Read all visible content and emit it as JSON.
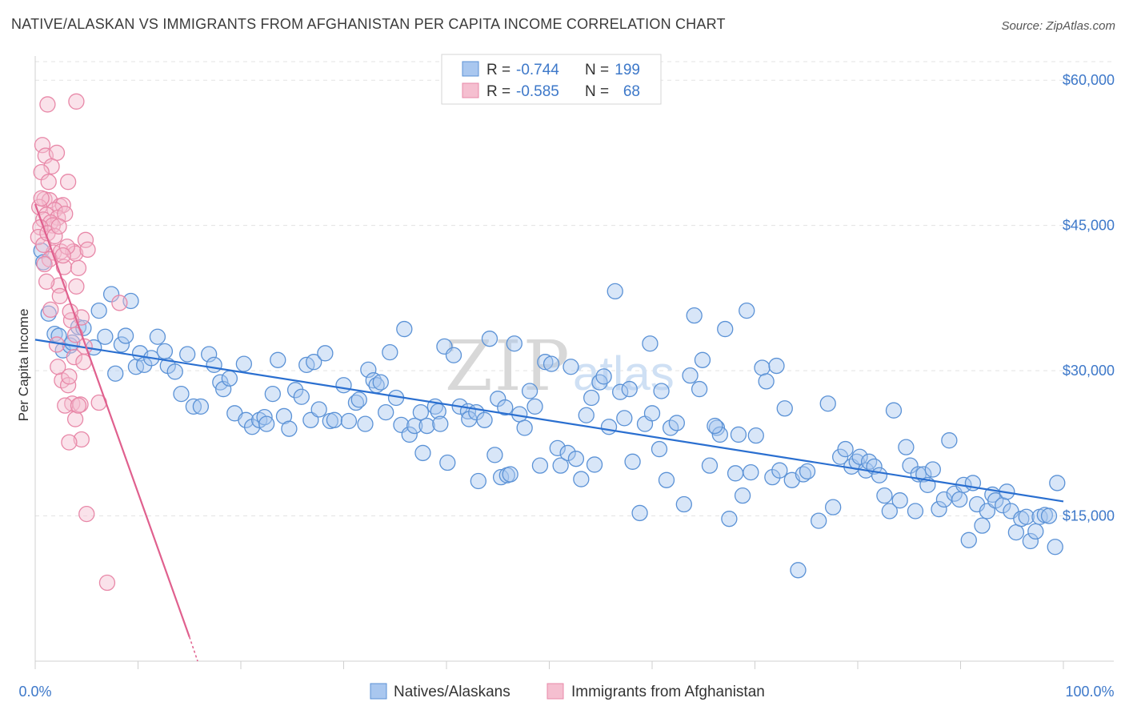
{
  "title": "NATIVE/ALASKAN VS IMMIGRANTS FROM AFGHANISTAN PER CAPITA INCOME CORRELATION CHART",
  "source": "Source: ZipAtlas.com",
  "watermark": {
    "zip": "ZIP",
    "atlas": "atlas"
  },
  "colors": {
    "blue_stroke": "#5b92d6",
    "blue_fill": "#a9c7ef",
    "blue_line": "#2a6fd0",
    "pink_stroke": "#e888a8",
    "pink_fill": "#f5bfd0",
    "pink_line": "#e0608e",
    "tick_text": "#3d78c9",
    "grid": "#e3e3e3"
  },
  "legend": {
    "r_label": "R =",
    "n_label": "N =",
    "rows": [
      {
        "r": "-0.744",
        "n": "199"
      },
      {
        "r": "-0.585",
        "n": "68"
      }
    ]
  },
  "chart_data": {
    "type": "scatter",
    "title": "NATIVE/ALASKAN VS IMMIGRANTS FROM AFGHANISTAN PER CAPITA INCOME CORRELATION CHART",
    "xlabel": "",
    "ylabel": "Per Capita Income",
    "xlim": [
      0,
      100
    ],
    "ylim": [
      0,
      62000
    ],
    "x_tick_labels": [
      "0.0%",
      "100.0%"
    ],
    "y_ticks": [
      15000,
      30000,
      45000,
      60000
    ],
    "y_tick_labels": [
      "$15,000",
      "$30,000",
      "$45,000",
      "$60,000"
    ],
    "grid": true,
    "legend_position": "top-center",
    "series": [
      {
        "name": "Natives/Alaskans",
        "r": -0.744,
        "n": 199,
        "trend": {
          "x": [
            0,
            100
          ],
          "y": [
            33200,
            16500
          ]
        },
        "points": [
          [
            0.6,
            42400
          ],
          [
            0.8,
            41200
          ],
          [
            1.3,
            35900
          ],
          [
            1.9,
            33800
          ],
          [
            2.3,
            33600
          ],
          [
            2.7,
            32100
          ],
          [
            3.4,
            32600
          ],
          [
            3.6,
            32900
          ],
          [
            4.2,
            34500
          ],
          [
            4.7,
            34400
          ],
          [
            5.7,
            32400
          ],
          [
            6.2,
            36200
          ],
          [
            6.8,
            33500
          ],
          [
            7.4,
            37900
          ],
          [
            7.8,
            29700
          ],
          [
            8.4,
            32700
          ],
          [
            8.8,
            33600
          ],
          [
            9.3,
            37200
          ],
          [
            9.8,
            30400
          ],
          [
            10.2,
            31800
          ],
          [
            10.6,
            30600
          ],
          [
            11.3,
            31300
          ],
          [
            11.9,
            33500
          ],
          [
            12.6,
            32000
          ],
          [
            12.9,
            30500
          ],
          [
            13.6,
            29900
          ],
          [
            14.2,
            27600
          ],
          [
            14.8,
            31700
          ],
          [
            15.4,
            26300
          ],
          [
            16.1,
            26300
          ],
          [
            16.9,
            31700
          ],
          [
            17.4,
            30600
          ],
          [
            18,
            28800
          ],
          [
            18.3,
            28100
          ],
          [
            18.9,
            29200
          ],
          [
            19.4,
            25600
          ],
          [
            20.3,
            30700
          ],
          [
            20.5,
            24900
          ],
          [
            21.1,
            24200
          ],
          [
            21.8,
            24900
          ],
          [
            22.3,
            25200
          ],
          [
            22.5,
            24500
          ],
          [
            23.1,
            27600
          ],
          [
            23.6,
            31100
          ],
          [
            24.2,
            25300
          ],
          [
            24.7,
            24000
          ],
          [
            25.3,
            28000
          ],
          [
            25.9,
            27300
          ],
          [
            26.4,
            30600
          ],
          [
            26.8,
            24900
          ],
          [
            27.1,
            30900
          ],
          [
            27.6,
            26000
          ],
          [
            28.2,
            31800
          ],
          [
            28.7,
            24800
          ],
          [
            29.1,
            24900
          ],
          [
            30,
            28500
          ],
          [
            30.5,
            24800
          ],
          [
            31.2,
            26700
          ],
          [
            31.5,
            27000
          ],
          [
            32.1,
            24500
          ],
          [
            32.4,
            30100
          ],
          [
            32.9,
            29000
          ],
          [
            33.2,
            28500
          ],
          [
            33.6,
            28800
          ],
          [
            34.1,
            25700
          ],
          [
            34.5,
            31900
          ],
          [
            35.1,
            27200
          ],
          [
            35.6,
            24400
          ],
          [
            35.9,
            34300
          ],
          [
            36.4,
            23400
          ],
          [
            36.9,
            24300
          ],
          [
            37.5,
            25700
          ],
          [
            37.7,
            21500
          ],
          [
            38.1,
            24300
          ],
          [
            38.9,
            26300
          ],
          [
            39.2,
            25800
          ],
          [
            39.4,
            24500
          ],
          [
            39.8,
            32500
          ],
          [
            40.1,
            20500
          ],
          [
            40.7,
            31600
          ],
          [
            41.3,
            26300
          ],
          [
            42.1,
            25800
          ],
          [
            42.2,
            25000
          ],
          [
            42.9,
            25700
          ],
          [
            43.1,
            18600
          ],
          [
            43.7,
            24900
          ],
          [
            44.2,
            33300
          ],
          [
            44.7,
            21300
          ],
          [
            45,
            27100
          ],
          [
            45.3,
            19000
          ],
          [
            45.9,
            19200
          ],
          [
            46.2,
            19300
          ],
          [
            46.6,
            32800
          ],
          [
            47.1,
            25500
          ],
          [
            47.6,
            24100
          ],
          [
            48.1,
            27900
          ],
          [
            48.6,
            26300
          ],
          [
            49.1,
            20200
          ],
          [
            49.6,
            30900
          ],
          [
            50.2,
            30700
          ],
          [
            50.8,
            22000
          ],
          [
            51.1,
            20200
          ],
          [
            51.8,
            21500
          ],
          [
            52.1,
            30400
          ],
          [
            52.6,
            20900
          ],
          [
            53.1,
            18800
          ],
          [
            53.6,
            25400
          ],
          [
            54.1,
            27200
          ],
          [
            54.4,
            20300
          ],
          [
            54.9,
            28800
          ],
          [
            55.3,
            29400
          ],
          [
            55.8,
            24200
          ],
          [
            56.4,
            38200
          ],
          [
            56.9,
            27800
          ],
          [
            57.3,
            25100
          ],
          [
            57.8,
            28100
          ],
          [
            58.1,
            20600
          ],
          [
            58.8,
            15300
          ],
          [
            59.3,
            24500
          ],
          [
            59.8,
            32800
          ],
          [
            60,
            25600
          ],
          [
            60.7,
            21900
          ],
          [
            61.4,
            18700
          ],
          [
            61.8,
            24100
          ],
          [
            62.4,
            24600
          ],
          [
            63.1,
            16200
          ],
          [
            63.7,
            29500
          ],
          [
            64.1,
            35700
          ],
          [
            64.6,
            28100
          ],
          [
            64.9,
            31100
          ],
          [
            65.6,
            20200
          ],
          [
            66.3,
            24100
          ],
          [
            66.6,
            23400
          ],
          [
            67.1,
            34300
          ],
          [
            67.5,
            14700
          ],
          [
            68.1,
            19400
          ],
          [
            68.4,
            23400
          ],
          [
            68.8,
            17100
          ],
          [
            69.2,
            36200
          ],
          [
            69.6,
            19500
          ],
          [
            70.1,
            23300
          ],
          [
            70.7,
            30300
          ],
          [
            71.1,
            28900
          ],
          [
            71.7,
            19000
          ],
          [
            72.1,
            30500
          ],
          [
            72.4,
            19700
          ],
          [
            72.9,
            26100
          ],
          [
            73.6,
            18700
          ],
          [
            74.2,
            9400
          ],
          [
            74.7,
            19300
          ],
          [
            75.1,
            19600
          ],
          [
            76.2,
            14500
          ],
          [
            77.1,
            26600
          ],
          [
            77.6,
            15900
          ],
          [
            78.3,
            21100
          ],
          [
            78.8,
            21900
          ],
          [
            79.4,
            20100
          ],
          [
            79.9,
            20600
          ],
          [
            80.2,
            21100
          ],
          [
            80.8,
            19700
          ],
          [
            81.1,
            20600
          ],
          [
            81.6,
            20100
          ],
          [
            82.1,
            19200
          ],
          [
            82.6,
            17100
          ],
          [
            83.1,
            15500
          ],
          [
            83.5,
            25900
          ],
          [
            84.1,
            16600
          ],
          [
            84.7,
            22100
          ],
          [
            85.1,
            20200
          ],
          [
            85.6,
            15500
          ],
          [
            85.9,
            19300
          ],
          [
            86.4,
            19300
          ],
          [
            86.8,
            18200
          ],
          [
            87.3,
            19800
          ],
          [
            87.9,
            15700
          ],
          [
            88.4,
            16700
          ],
          [
            88.9,
            22800
          ],
          [
            89.4,
            17300
          ],
          [
            89.9,
            16700
          ],
          [
            90.3,
            18200
          ],
          [
            90.8,
            12500
          ],
          [
            91.2,
            18400
          ],
          [
            91.6,
            16200
          ],
          [
            92.1,
            14000
          ],
          [
            92.6,
            15500
          ],
          [
            93.1,
            17200
          ],
          [
            93.4,
            16600
          ],
          [
            94.1,
            16100
          ],
          [
            94.5,
            17500
          ],
          [
            94.9,
            15500
          ],
          [
            95.4,
            13300
          ],
          [
            95.9,
            14700
          ],
          [
            96.4,
            14900
          ],
          [
            96.8,
            12400
          ],
          [
            97.3,
            13400
          ],
          [
            97.7,
            14900
          ],
          [
            98.2,
            15100
          ],
          [
            98.6,
            15000
          ],
          [
            99.2,
            11800
          ],
          [
            99.4,
            18400
          ],
          [
            66.1,
            24300
          ],
          [
            60.9,
            27900
          ],
          [
            45.7,
            26200
          ]
        ]
      },
      {
        "name": "Immigrants from Afghanistan",
        "r": -0.585,
        "n": 68,
        "trend": {
          "x": [
            0,
            15
          ],
          "y": [
            47200,
            2500
          ]
        },
        "trend_dashed_to": {
          "x": 15.8,
          "y": 0
        },
        "points": [
          [
            1.2,
            57500
          ],
          [
            4,
            57800
          ],
          [
            0.7,
            53300
          ],
          [
            1,
            52200
          ],
          [
            2.1,
            52500
          ],
          [
            1.6,
            51100
          ],
          [
            0.6,
            50500
          ],
          [
            1.3,
            49500
          ],
          [
            3.2,
            49500
          ],
          [
            0.9,
            47700
          ],
          [
            1.4,
            47600
          ],
          [
            2.4,
            47000
          ],
          [
            2.7,
            47100
          ],
          [
            0.4,
            46900
          ],
          [
            1.9,
            46600
          ],
          [
            1.1,
            46100
          ],
          [
            2.2,
            45800
          ],
          [
            0.8,
            45600
          ],
          [
            1.5,
            45300
          ],
          [
            1.7,
            45000
          ],
          [
            0.5,
            44800
          ],
          [
            2.9,
            46200
          ],
          [
            0.3,
            43800
          ],
          [
            4.9,
            43500
          ],
          [
            1.8,
            42200
          ],
          [
            2.5,
            42300
          ],
          [
            3.7,
            42300
          ],
          [
            3.9,
            42100
          ],
          [
            5.1,
            42500
          ],
          [
            1.4,
            41500
          ],
          [
            2.8,
            40700
          ],
          [
            0.9,
            41000
          ],
          [
            2.3,
            38800
          ],
          [
            4,
            38700
          ],
          [
            8.2,
            37000
          ],
          [
            1.5,
            36300
          ],
          [
            4.5,
            35500
          ],
          [
            3.5,
            35200
          ],
          [
            2.1,
            32700
          ],
          [
            4.8,
            32500
          ],
          [
            3.8,
            31400
          ],
          [
            2.6,
            29000
          ],
          [
            3.2,
            28500
          ],
          [
            3.6,
            26600
          ],
          [
            4.4,
            26500
          ],
          [
            6.2,
            26700
          ],
          [
            2.9,
            26400
          ],
          [
            3.9,
            25000
          ],
          [
            4.5,
            22900
          ],
          [
            3.3,
            22600
          ],
          [
            5,
            15200
          ],
          [
            7,
            8100
          ],
          [
            0.8,
            43000
          ],
          [
            1.2,
            44200
          ],
          [
            0.6,
            47800
          ],
          [
            1.9,
            43900
          ],
          [
            2.3,
            44900
          ],
          [
            3.1,
            42800
          ],
          [
            2.7,
            41900
          ],
          [
            4.2,
            40600
          ],
          [
            1.1,
            39200
          ],
          [
            2.4,
            37700
          ],
          [
            3.4,
            36100
          ],
          [
            3.9,
            33700
          ],
          [
            4.7,
            30900
          ],
          [
            2.2,
            30400
          ],
          [
            3.3,
            29400
          ],
          [
            4.2,
            26400
          ]
        ]
      }
    ]
  }
}
